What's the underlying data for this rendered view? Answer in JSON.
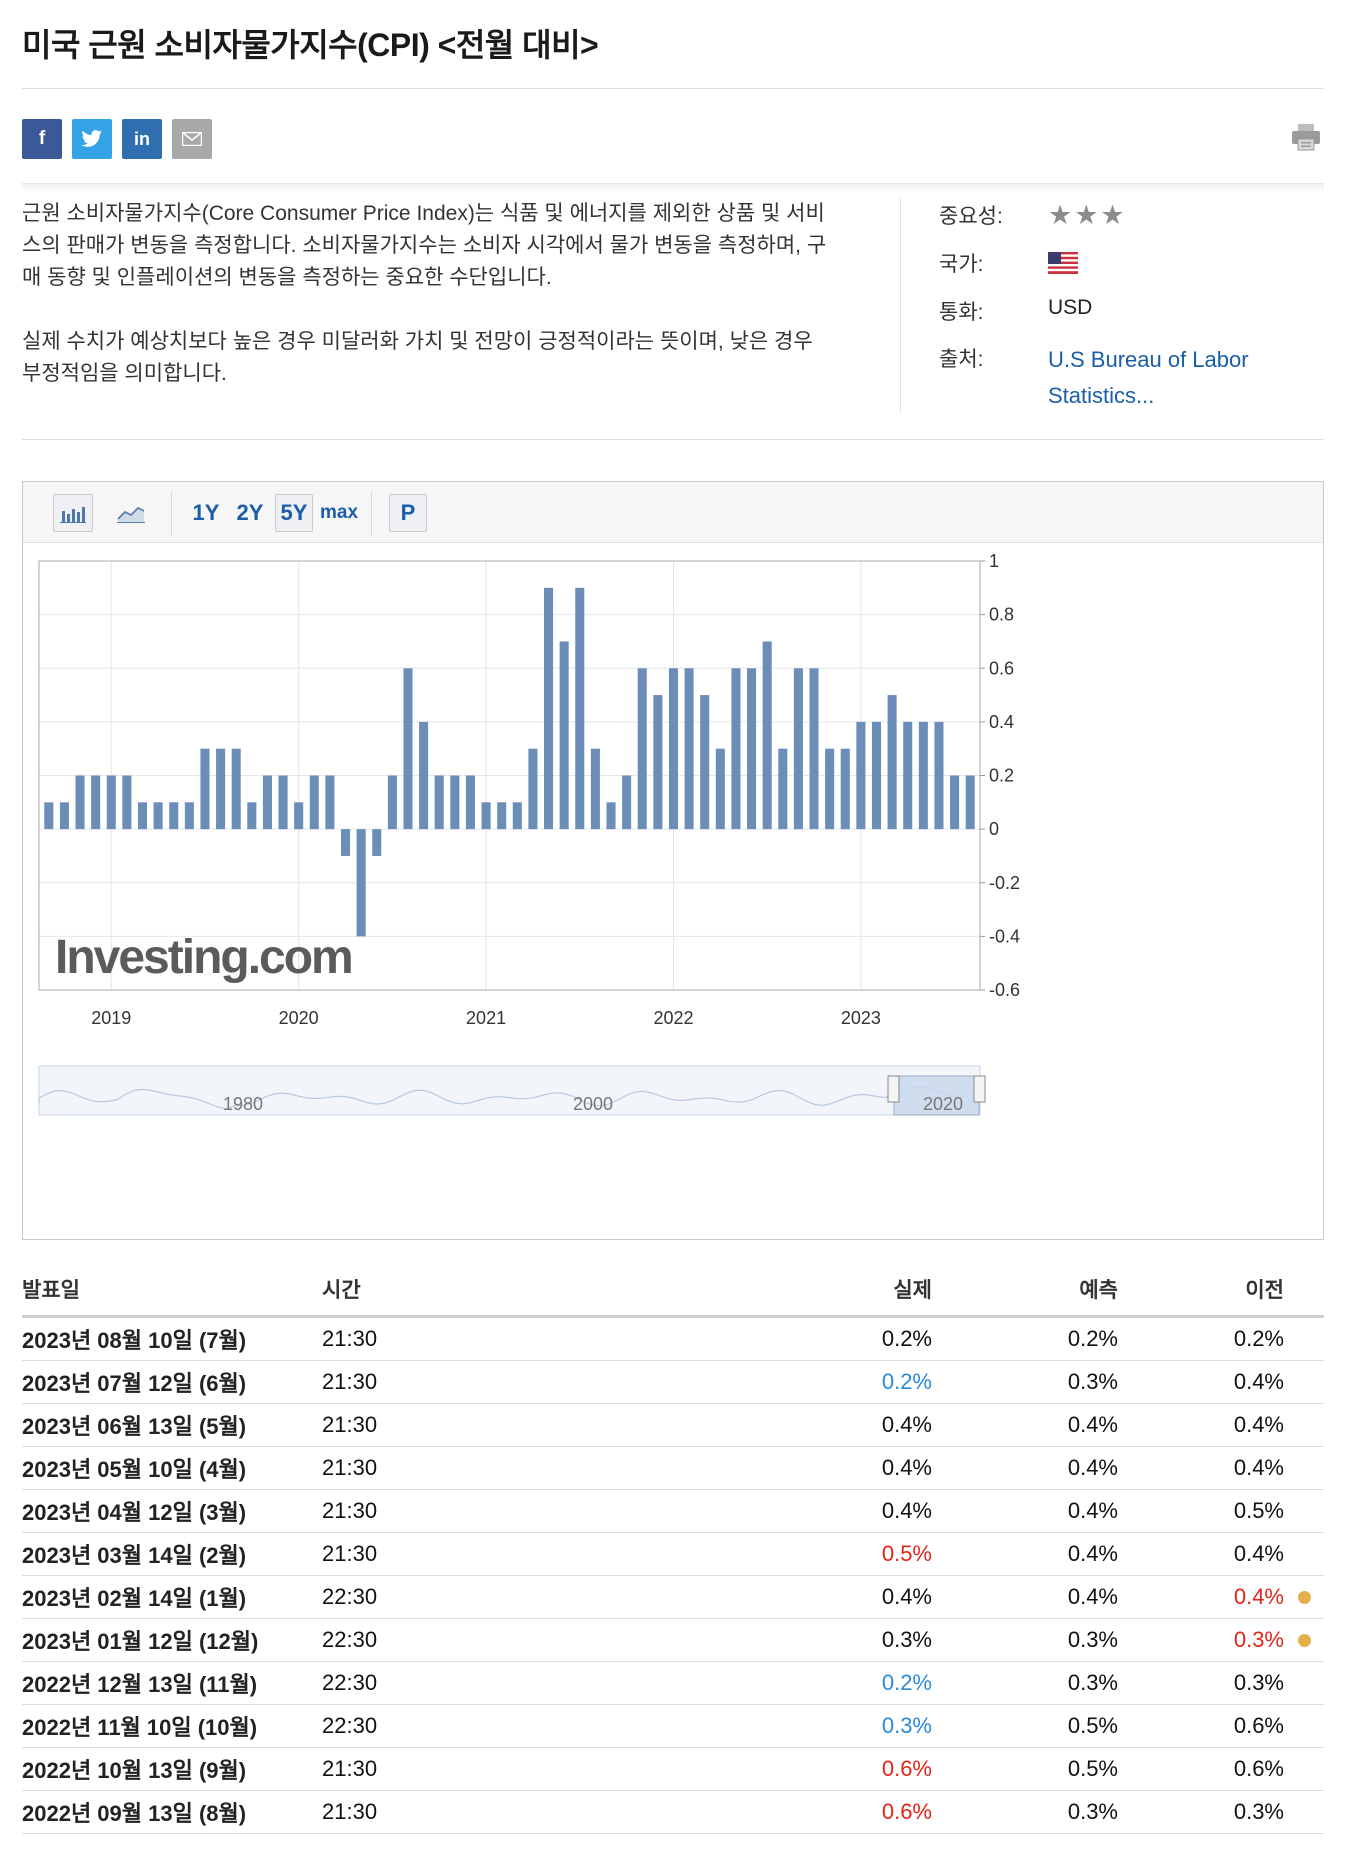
{
  "page": {
    "title": "미국 근원 소비자물가지수(CPI) <전월 대비>"
  },
  "share": [
    {
      "name": "facebook-share-button",
      "glyph": "f"
    },
    {
      "name": "twitter-share-button",
      "glyph": "t"
    },
    {
      "name": "linkedin-share-button",
      "glyph": "in"
    },
    {
      "name": "email-share-button",
      "glyph": "✉"
    }
  ],
  "description": {
    "p1": "근원 소비자물가지수(Core Consumer Price Index)는 식품 및 에너지를 제외한 상품 및 서비스의 판매가 변동을 측정합니다. 소비자물가지수는 소비자 시각에서 물가 변동을 측정하며, 구매 동향 및 인플레이션의 변동을 측정하는 중요한 수단입니다.",
    "p2": "실제 수치가 예상치보다 높은 경우 미달러화 가치 및 전망이 긍정적이라는 뜻이며, 낮은 경우 부정적임을 의미합니다."
  },
  "meta": {
    "importance_label": "중요성:",
    "importance_stars": "★★★",
    "country_label": "국가:",
    "country_icon": "us-flag-icon",
    "currency_label": "통화:",
    "currency_value": "USD",
    "source_label": "출처:",
    "source_value": "U.S Bureau of Labor Statistics..."
  },
  "toolbar": {
    "ranges": [
      "1Y",
      "2Y",
      "5Y",
      "max"
    ],
    "selected_range": "5Y",
    "p_label": "P"
  },
  "chart_data": {
    "type": "bar",
    "x_tick_labels": [
      "2019",
      "2020",
      "2021",
      "2022",
      "2023"
    ],
    "y_tick_labels": [
      "1",
      "0.8",
      "0.6",
      "0.4",
      "0.2",
      "0",
      "-0.2",
      "-0.4",
      "-0.6"
    ],
    "ylim": [
      -0.6,
      1.0
    ],
    "grid": true,
    "watermark": "Investing.com",
    "values": [
      0.1,
      0.1,
      0.2,
      0.2,
      0.2,
      0.2,
      0.1,
      0.1,
      0.1,
      0.1,
      0.3,
      0.3,
      0.3,
      0.1,
      0.2,
      0.2,
      0.1,
      0.2,
      0.2,
      -0.1,
      -0.4,
      -0.1,
      0.2,
      0.6,
      0.4,
      0.2,
      0.2,
      0.2,
      0.1,
      0.1,
      0.1,
      0.3,
      0.9,
      0.7,
      0.9,
      0.3,
      0.1,
      0.2,
      0.6,
      0.5,
      0.6,
      0.6,
      0.5,
      0.3,
      0.6,
      0.6,
      0.7,
      0.3,
      0.6,
      0.6,
      0.3,
      0.3,
      0.4,
      0.4,
      0.5,
      0.4,
      0.4,
      0.4,
      0.2,
      0.2
    ],
    "navigator_labels": [
      "1980",
      "2000",
      "2020"
    ]
  },
  "table": {
    "headers": [
      "발표일",
      "시간",
      "실제",
      "예측",
      "이전"
    ],
    "rows": [
      {
        "date": "2023년 08월 10일 (7월)",
        "time": "21:30",
        "actual": "0.2%",
        "forecast": "0.2%",
        "previous": "0.2%",
        "actual_status": "",
        "previous_status": "",
        "revised": false
      },
      {
        "date": "2023년 07월 12일 (6월)",
        "time": "21:30",
        "actual": "0.2%",
        "forecast": "0.3%",
        "previous": "0.4%",
        "actual_status": "down",
        "previous_status": "",
        "revised": false
      },
      {
        "date": "2023년 06월 13일 (5월)",
        "time": "21:30",
        "actual": "0.4%",
        "forecast": "0.4%",
        "previous": "0.4%",
        "actual_status": "",
        "previous_status": "",
        "revised": false
      },
      {
        "date": "2023년 05월 10일 (4월)",
        "time": "21:30",
        "actual": "0.4%",
        "forecast": "0.4%",
        "previous": "0.4%",
        "actual_status": "",
        "previous_status": "",
        "revised": false
      },
      {
        "date": "2023년 04월 12일 (3월)",
        "time": "21:30",
        "actual": "0.4%",
        "forecast": "0.4%",
        "previous": "0.5%",
        "actual_status": "",
        "previous_status": "",
        "revised": false
      },
      {
        "date": "2023년 03월 14일 (2월)",
        "time": "21:30",
        "actual": "0.5%",
        "forecast": "0.4%",
        "previous": "0.4%",
        "actual_status": "up",
        "previous_status": "",
        "revised": false
      },
      {
        "date": "2023년 02월 14일 (1월)",
        "time": "22:30",
        "actual": "0.4%",
        "forecast": "0.4%",
        "previous": "0.4%",
        "actual_status": "",
        "previous_status": "up",
        "revised": true
      },
      {
        "date": "2023년 01월 12일 (12월)",
        "time": "22:30",
        "actual": "0.3%",
        "forecast": "0.3%",
        "previous": "0.3%",
        "actual_status": "",
        "previous_status": "up",
        "revised": true
      },
      {
        "date": "2022년 12월 13일 (11월)",
        "time": "22:30",
        "actual": "0.2%",
        "forecast": "0.3%",
        "previous": "0.3%",
        "actual_status": "down",
        "previous_status": "",
        "revised": false
      },
      {
        "date": "2022년 11월 10일 (10월)",
        "time": "22:30",
        "actual": "0.3%",
        "forecast": "0.5%",
        "previous": "0.6%",
        "actual_status": "down",
        "previous_status": "",
        "revised": false
      },
      {
        "date": "2022년 10월 13일 (9월)",
        "time": "21:30",
        "actual": "0.6%",
        "forecast": "0.5%",
        "previous": "0.6%",
        "actual_status": "up",
        "previous_status": "",
        "revised": false
      },
      {
        "date": "2022년 09월 13일 (8월)",
        "time": "21:30",
        "actual": "0.6%",
        "forecast": "0.3%",
        "previous": "0.3%",
        "actual_status": "up",
        "previous_status": "",
        "revised": false
      }
    ]
  },
  "colors": {
    "bar": "#6b8db8",
    "link": "#1b5da8",
    "up": "#e1251b",
    "down": "#2b8ad8",
    "revised_dot": "#e3b14a"
  }
}
